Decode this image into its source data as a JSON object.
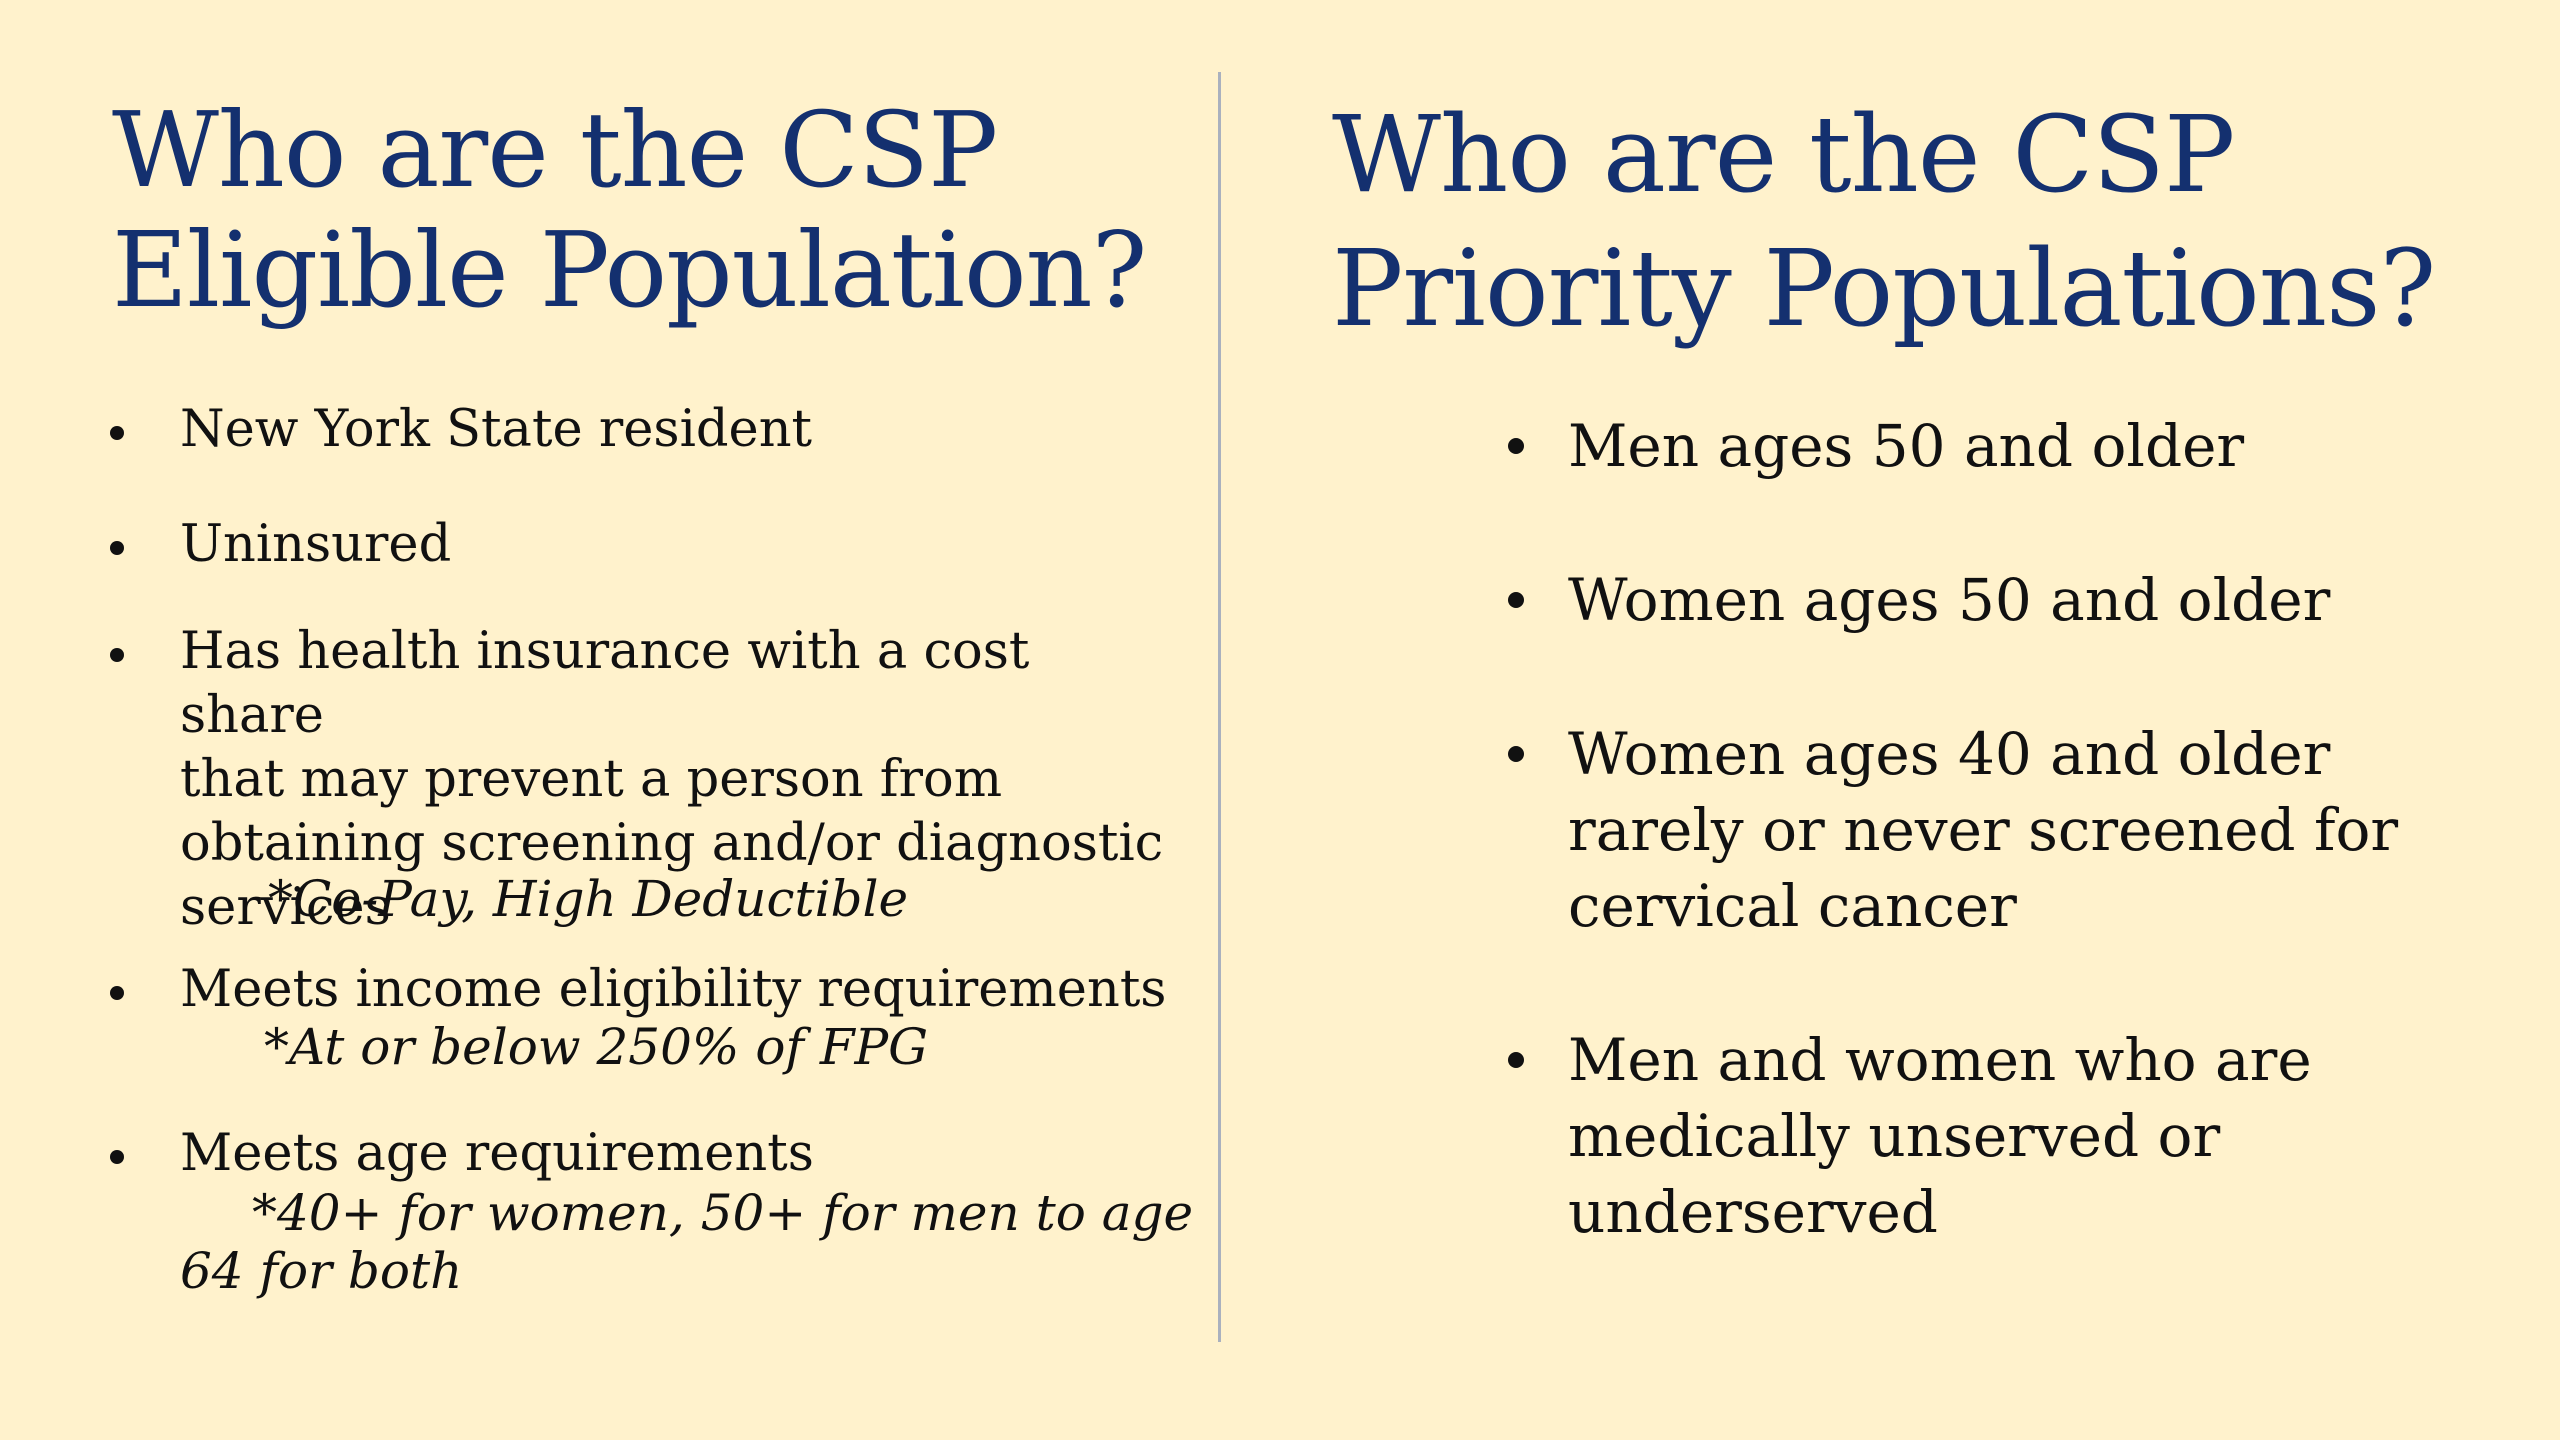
{
  "slide": {
    "left": {
      "title_line1": "Who are the CSP",
      "title_line2": "Eligible Population?",
      "bullets": [
        {
          "text": "New York State resident"
        },
        {
          "text": "Uninsured"
        },
        {
          "text": "Has health insurance with a cost share\nthat may prevent a person from\nobtaining screening and/or diagnostic\nservices",
          "note": "*Co-Pay, High Deductible"
        },
        {
          "text": "Meets income eligibility requirements",
          "note": "*At or below 250% of FPG"
        },
        {
          "text": "Meets age requirements",
          "note_line1": "*40+ for women, 50+ for men to age",
          "note_line2": "64 for both"
        }
      ]
    },
    "right": {
      "title_line1": "Who are the CSP",
      "title_line2": "Priority Populations?",
      "bullets": [
        {
          "text": "Men ages 50 and older"
        },
        {
          "text": "Women ages 50 and older"
        },
        {
          "text": "Women ages 40 and older\nrarely or never screened for\ncervical cancer"
        },
        {
          "text": "Men and women who are\nmedically unserved or\nunderserved"
        }
      ]
    }
  }
}
